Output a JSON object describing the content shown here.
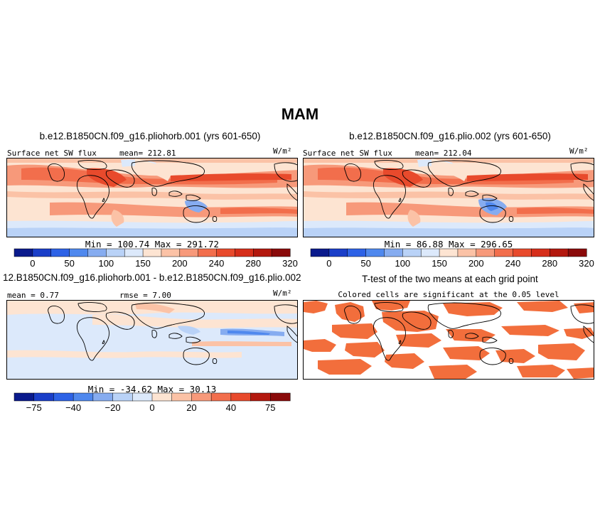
{
  "page": {
    "title": "MAM"
  },
  "panels": [
    {
      "title": "b.e12.B1850CN.f09_g16.pliohorb.001 (yrs 601-650)",
      "variable": "Surface net SW flux",
      "stat_text": "mean= 212.81",
      "units": "W/m²",
      "minmax": "Min = 100.74 Max = 291.72"
    },
    {
      "title": "b.e12.B1850CN.f09_g16.plio.002 (yrs 601-650)",
      "variable": "Surface net SW flux",
      "stat_text": "mean= 212.04",
      "units": "W/m²",
      "minmax": "Min =  86.88 Max = 296.65"
    },
    {
      "title": "12.B1850CN.f09_g16.pliohorb.001 - b.e12.B1850CN.f09_g16.plio.002",
      "stat_text": "mean =  0.77",
      "rmse_text": "rmse =   7.00",
      "units": "W/m²",
      "minmax": "Min = -34.62 Max =  30.13"
    },
    {
      "title": "T-test of the two means at each grid point",
      "subtitle": "Colored cells are significant at the 0.05 level"
    }
  ],
  "colors": {
    "abs_scale": [
      "#0a1a8c",
      "#1a3ec8",
      "#2d62e6",
      "#4f88ee",
      "#86acf0",
      "#b9d2f7",
      "#dce9fb",
      "#fde4d2",
      "#fbc2a6",
      "#f7997a",
      "#f26e4c",
      "#e84a2c",
      "#d62e1a",
      "#b3180e",
      "#8a0a0a"
    ],
    "diff_scale": [
      "#0a1a8c",
      "#1a3ec8",
      "#2d62e6",
      "#4f88ee",
      "#86acf0",
      "#b9d2f7",
      "#dce9fb",
      "#fde4d2",
      "#fbc2a6",
      "#f7997a",
      "#f26e4c",
      "#e84a2c",
      "#b3180e",
      "#8a0a0a"
    ],
    "ttest_fill": "#f26e3c"
  },
  "chart_data": [
    {
      "type": "heatmap",
      "title": "b.e12.B1850CN.f09_g16.pliohorb.001 (yrs 601-650)",
      "variable": "Surface net SW flux",
      "units": "W/m^2",
      "mean": 212.81,
      "min": 100.74,
      "max": 291.72,
      "colorbar_ticks": [
        0,
        50,
        100,
        150,
        200,
        240,
        280,
        320
      ]
    },
    {
      "type": "heatmap",
      "title": "b.e12.B1850CN.f09_g16.plio.002 (yrs 601-650)",
      "variable": "Surface net SW flux",
      "units": "W/m^2",
      "mean": 212.04,
      "min": 86.88,
      "max": 296.65,
      "colorbar_ticks": [
        0,
        50,
        100,
        150,
        200,
        240,
        280,
        320
      ]
    },
    {
      "type": "heatmap",
      "title": "12.B1850CN.f09_g16.pliohorb.001 - b.e12.B1850CN.f09_g16.plio.002",
      "units": "W/m^2",
      "mean": 0.77,
      "rmse": 7.0,
      "min": -34.62,
      "max": 30.13,
      "colorbar_ticks": [
        -75,
        -40,
        -20,
        0,
        20,
        40,
        75
      ]
    },
    {
      "type": "heatmap",
      "title": "T-test of the two means at each grid point",
      "subtitle": "Colored cells are significant at the 0.05 level"
    }
  ]
}
